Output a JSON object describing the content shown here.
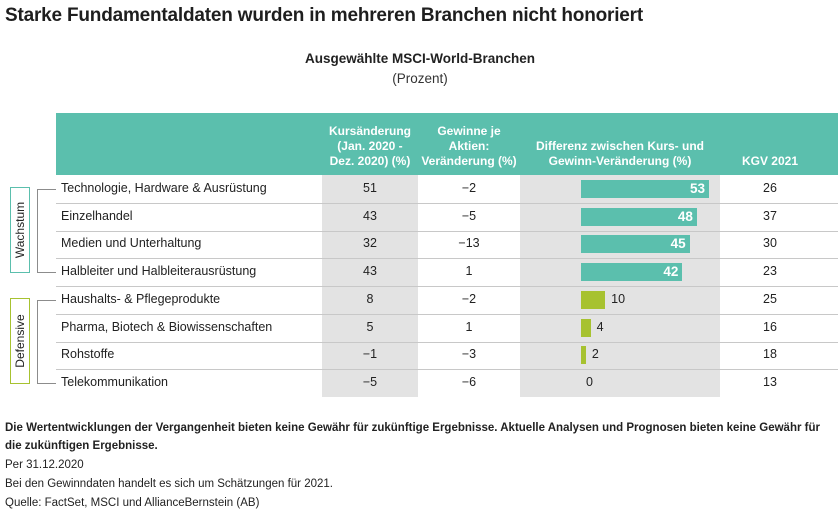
{
  "main_title": "Starke Fundamentaldaten wurden in mehreren Branchen nicht honoriert",
  "chart_data": {
    "type": "table",
    "title": "Ausgewählte MSCI-World-Branchen",
    "subtitle": "(Prozent)",
    "columns": [
      "Kursänderung (Jan. 2020 - Dez. 2020) (%)",
      "Gewinne je Aktien: Veränderung (%)",
      "Differenz zwischen Kurs- und Gewinn-Veränderung (%)",
      "KGV 2021"
    ],
    "column_lines": [
      [
        "Kursänderung",
        "(Jan. 2020 -",
        "Dez. 2020) (%)"
      ],
      [
        "Gewinne je",
        "Aktien:",
        "Veränderung (%)"
      ],
      [
        "Differenz zwischen Kurs- und",
        "Gewinn-Veränderung (%)"
      ],
      [
        "KGV 2021"
      ]
    ],
    "groups": [
      {
        "name": "Wachstum",
        "color": "#5bbfad"
      },
      {
        "name": "Defensive",
        "color": "#a7c230"
      }
    ],
    "rows": [
      {
        "label": "Technologie, Hardware & Ausrüstung",
        "group": "Wachstum",
        "kurs": "51",
        "gewinn": "−2",
        "diff": 53,
        "diff_label": "53",
        "kgv": "26"
      },
      {
        "label": "Einzelhandel",
        "group": "Wachstum",
        "kurs": "43",
        "gewinn": "−5",
        "diff": 48,
        "diff_label": "48",
        "kgv": "37"
      },
      {
        "label": "Medien und Unterhaltung",
        "group": "Wachstum",
        "kurs": "32",
        "gewinn": "−13",
        "diff": 45,
        "diff_label": "45",
        "kgv": "30"
      },
      {
        "label": "Halbleiter und Halbleiterausrüstung",
        "group": "Wachstum",
        "kurs": "43",
        "gewinn": "1",
        "diff": 42,
        "diff_label": "42",
        "kgv": "23"
      },
      {
        "label": "Haushalts- & Pflegeprodukte",
        "group": "Defensive",
        "kurs": "8",
        "gewinn": "−2",
        "diff": 10,
        "diff_label": "10",
        "kgv": "25"
      },
      {
        "label": "Pharma, Biotech & Biowissenschaften",
        "group": "Defensive",
        "kurs": "5",
        "gewinn": "1",
        "diff": 4,
        "diff_label": "4",
        "kgv": "16"
      },
      {
        "label": "Rohstoffe",
        "group": "Defensive",
        "kurs": "−1",
        "gewinn": "−3",
        "diff": 2,
        "diff_label": "2",
        "kgv": "18"
      },
      {
        "label": "Telekommunikation",
        "group": "Defensive",
        "kurs": "−5",
        "gewinn": "−6",
        "diff": 0,
        "diff_label": "0",
        "kgv": "13"
      }
    ],
    "diff_max": 53
  },
  "footer": {
    "disclaimer": "Die Wertentwicklungen der Vergangenheit bieten keine Gewähr für zukünftige Ergebnisse. Aktuelle Analysen und Prognosen bieten keine Gewähr für die zukünftigen Ergebnisse.",
    "date_note": "Per 31.12.2020",
    "estimate_note": "Bei den Gewinndaten handelt es sich um Schätzungen für 2021.",
    "source": "Quelle: FactSet, MSCI und AllianceBernstein (AB)"
  }
}
